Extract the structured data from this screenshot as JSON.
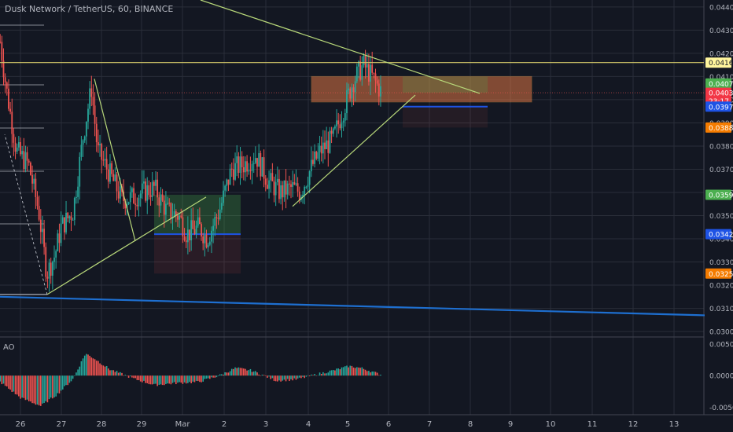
{
  "header": {
    "title": "Dusk Network / TetherUS, 60, BINANCE"
  },
  "indicator": {
    "name": "AO"
  },
  "chart_data": {
    "type": "candlestick",
    "symbol": "Dusk Network / TetherUS",
    "interval": "60",
    "exchange": "BINANCE",
    "x_ticks": [
      "26",
      "27",
      "28",
      "29",
      "Mar",
      "2",
      "3",
      "4",
      "5",
      "6",
      "7",
      "8",
      "9",
      "10",
      "11",
      "12",
      "13"
    ],
    "price_ticks": [
      "0.0440",
      "0.0430",
      "0.0420",
      "0.0410",
      "0.0400",
      "0.0390",
      "0.0380",
      "0.0370",
      "0.0360",
      "0.0350",
      "0.0340",
      "0.0330",
      "0.0320",
      "0.0310",
      "0.0300"
    ],
    "ao_ticks": [
      "0.0050",
      "0.0000",
      "-0.0050"
    ],
    "price_range": [
      0.0298,
      0.0443
    ],
    "ao_range": [
      -0.0062,
      0.006
    ],
    "price_labels": [
      {
        "text": "0.0416",
        "value": 0.0416,
        "bg": "#fff59d",
        "fg": "#131722"
      },
      {
        "text": "0.0407",
        "value": 0.0407,
        "bg": "#4caf50",
        "fg": "#ffffff"
      },
      {
        "text": "0.0403",
        "value": 0.0403,
        "bg": "#f23645",
        "fg": "#ffffff"
      },
      {
        "text": "23:17",
        "value": 0.03995,
        "bg": "#f23645",
        "fg": "#ffffff"
      },
      {
        "text": "0.0397",
        "value": 0.0397,
        "bg": "#1e53e5",
        "fg": "#ffffff"
      },
      {
        "text": "0.0388",
        "value": 0.0388,
        "bg": "#f57c00",
        "fg": "#ffffff"
      },
      {
        "text": "0.0359",
        "value": 0.0359,
        "bg": "#4caf50",
        "fg": "#ffffff"
      },
      {
        "text": "0.0342",
        "value": 0.0342,
        "bg": "#1e53e5",
        "fg": "#ffffff"
      },
      {
        "text": "0.0325",
        "value": 0.0325,
        "bg": "#f57c00",
        "fg": "#ffffff"
      }
    ],
    "colors": {
      "up": "#26a69a",
      "down": "#ef5350",
      "background": "#131722",
      "grid": "#2a2e39",
      "axis_text": "#b2b5be"
    }
  }
}
